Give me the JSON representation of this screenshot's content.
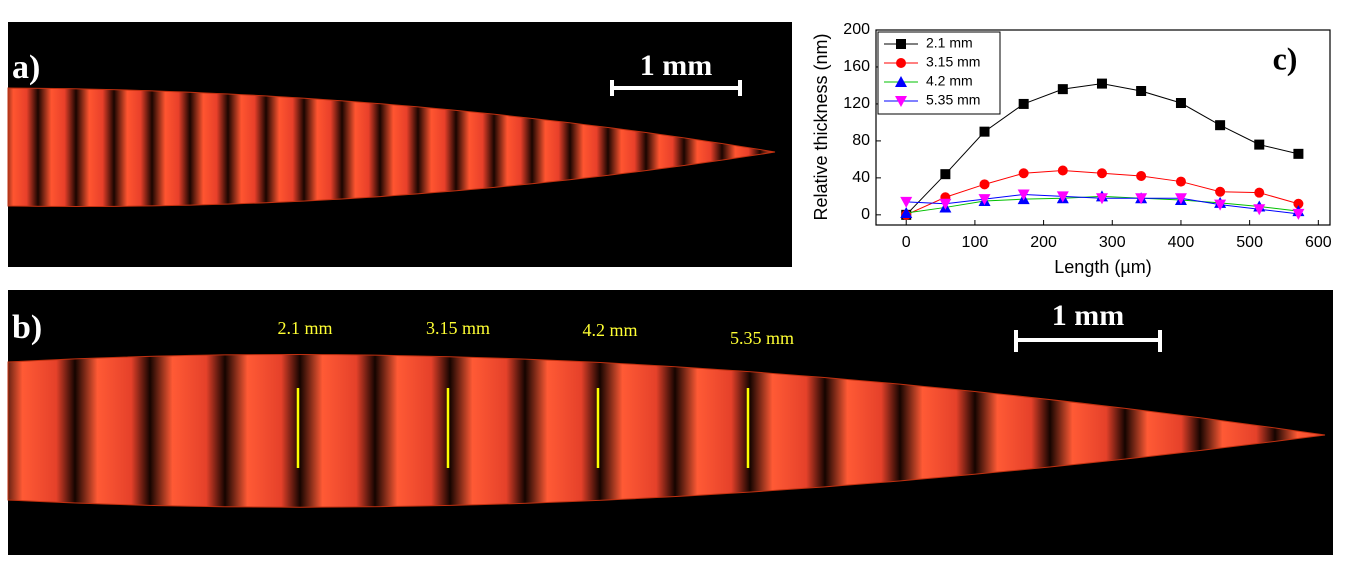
{
  "panels": {
    "a": {
      "label": "a)",
      "scale_bar": "1 mm"
    },
    "b": {
      "label": "b)",
      "scale_bar": "1 mm",
      "annotations": [
        "2.1 mm",
        "3.15 mm",
        "4.2 mm",
        "5.35 mm"
      ]
    }
  },
  "chart_data": {
    "type": "line",
    "panel_label": "c)",
    "x_label": "Length (µm)",
    "y_label": "Relative thickness (nm)",
    "x": [
      0,
      57,
      114,
      171,
      228,
      285,
      342,
      400,
      457,
      514,
      571
    ],
    "series": [
      {
        "name": "2.1 mm",
        "color": "#000000",
        "line_color": "#000000",
        "marker": "square",
        "values": [
          0,
          44,
          90,
          120,
          136,
          142,
          134,
          121,
          97,
          76,
          66
        ]
      },
      {
        "name": "3.15 mm",
        "color": "#ff0000",
        "line_color": "#ff0000",
        "marker": "circle",
        "values": [
          0,
          19,
          33,
          45,
          48,
          45,
          42,
          36,
          25,
          24,
          12
        ]
      },
      {
        "name": "4.2 mm",
        "color": "#0000ff",
        "line_color": "#00c000",
        "marker": "triangle-up",
        "values": [
          2,
          8,
          15,
          17,
          18,
          20,
          18,
          16,
          13,
          9,
          4
        ]
      },
      {
        "name": "5.35 mm",
        "color": "#ff00ff",
        "line_color": "#0000ff",
        "marker": "triangle-down",
        "values": [
          14,
          12,
          17,
          22,
          20,
          18,
          18,
          18,
          11,
          6,
          1
        ]
      }
    ],
    "xlim": [
      -44,
      617
    ],
    "xticks": [
      0,
      100,
      200,
      300,
      400,
      500,
      600
    ],
    "ylim": [
      -11,
      200
    ],
    "yticks": [
      0,
      40,
      80,
      120,
      160,
      200
    ],
    "legend": "upper left"
  }
}
